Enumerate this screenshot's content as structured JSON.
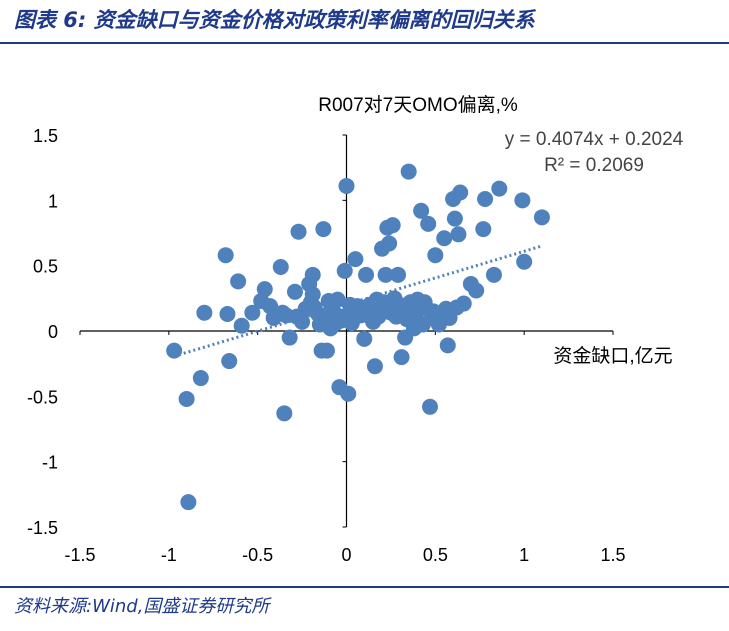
{
  "figure": {
    "title": "图表 6:  资金缺口与资金价格对政策利率偏离的回归关系",
    "source": "资料来源:Wind,国盛证券研究所"
  },
  "colors": {
    "marker": "#4f81bd",
    "trendline": "#4f81bd",
    "brand": "#1f3a8a"
  },
  "chart_data": {
    "type": "scatter",
    "title": "R007对7天OMO偏离,%",
    "xlabel": "资金缺口,亿元",
    "ylabel": "",
    "xlim": [
      -1.5,
      1.5
    ],
    "ylim": [
      -1.5,
      1.5
    ],
    "xticks": [
      "-1.5",
      "-1",
      "-0.5",
      "0",
      "0.5",
      "1",
      "1.5"
    ],
    "yticks": [
      "1.5",
      "1",
      "0.5",
      "0",
      "-0.5",
      "-1",
      "-1.5"
    ],
    "xtick_values": [
      -1.5,
      -1,
      -0.5,
      0,
      0.5,
      1,
      1.5
    ],
    "ytick_values": [
      1.5,
      1,
      0.5,
      0,
      -0.5,
      -1,
      -1.5
    ],
    "trendline": {
      "slope": 0.4074,
      "intercept": 0.2024,
      "x_range": [
        -0.97,
        1.1
      ]
    },
    "annotations": {
      "equation": "y = 0.4074x + 0.2024",
      "r2": "R² = 0.2069"
    },
    "grid": false,
    "points": [
      [
        -0.97,
        -0.15
      ],
      [
        -0.9,
        -0.52
      ],
      [
        -0.89,
        -1.31
      ],
      [
        -0.82,
        -0.36
      ],
      [
        -0.8,
        0.14
      ],
      [
        -0.68,
        0.58
      ],
      [
        -0.66,
        -0.23
      ],
      [
        -0.67,
        0.13
      ],
      [
        -0.61,
        0.38
      ],
      [
        -0.59,
        0.04
      ],
      [
        -0.53,
        0.14
      ],
      [
        -0.48,
        0.23
      ],
      [
        -0.46,
        0.32
      ],
      [
        -0.43,
        0.19
      ],
      [
        -0.41,
        0.1
      ],
      [
        -0.37,
        0.49
      ],
      [
        -0.36,
        0.14
      ],
      [
        -0.35,
        -0.63
      ],
      [
        -0.34,
        0.12
      ],
      [
        -0.32,
        -0.05
      ],
      [
        -0.29,
        0.3
      ],
      [
        -0.28,
        0.11
      ],
      [
        -0.27,
        0.76
      ],
      [
        -0.25,
        0.07
      ],
      [
        -0.23,
        0.17
      ],
      [
        -0.21,
        0.36
      ],
      [
        -0.2,
        0.22
      ],
      [
        -0.19,
        0.28
      ],
      [
        -0.19,
        0.43
      ],
      [
        -0.18,
        0.18
      ],
      [
        -0.16,
        0.13
      ],
      [
        -0.15,
        0.05
      ],
      [
        -0.14,
        -0.15
      ],
      [
        -0.13,
        0.78
      ],
      [
        -0.12,
        0.12
      ],
      [
        -0.11,
        -0.15
      ],
      [
        -0.1,
        0.23
      ],
      [
        -0.09,
        0.02
      ],
      [
        -0.08,
        0.04
      ],
      [
        -0.07,
        0.14
      ],
      [
        -0.06,
        0.06
      ],
      [
        -0.05,
        0.24
      ],
      [
        -0.04,
        -0.43
      ],
      [
        -0.03,
        0.08
      ],
      [
        -0.02,
        0.11
      ],
      [
        -0.01,
        0.46
      ],
      [
        0.0,
        1.11
      ],
      [
        0.01,
        -0.48
      ],
      [
        0.02,
        0.2
      ],
      [
        0.03,
        0.06
      ],
      [
        0.04,
        0.1
      ],
      [
        0.05,
        0.55
      ],
      [
        0.06,
        0.19
      ],
      [
        0.08,
        0.12
      ],
      [
        0.1,
        -0.06
      ],
      [
        0.11,
        0.43
      ],
      [
        0.12,
        0.12
      ],
      [
        0.13,
        0.2
      ],
      [
        0.15,
        0.07
      ],
      [
        0.16,
        -0.27
      ],
      [
        0.17,
        0.24
      ],
      [
        0.18,
        0.11
      ],
      [
        0.19,
        0.16
      ],
      [
        0.2,
        0.63
      ],
      [
        0.21,
        0.22
      ],
      [
        0.22,
        0.43
      ],
      [
        0.23,
        0.79
      ],
      [
        0.24,
        0.67
      ],
      [
        0.25,
        0.14
      ],
      [
        0.26,
        0.81
      ],
      [
        0.27,
        0.25
      ],
      [
        0.28,
        0.11
      ],
      [
        0.29,
        0.43
      ],
      [
        0.3,
        0.2
      ],
      [
        0.31,
        -0.2
      ],
      [
        0.32,
        0.17
      ],
      [
        0.33,
        -0.05
      ],
      [
        0.34,
        0.09
      ],
      [
        0.35,
        1.22
      ],
      [
        0.36,
        0.22
      ],
      [
        0.37,
        0.19
      ],
      [
        0.38,
        0.02
      ],
      [
        0.39,
        0.12
      ],
      [
        0.4,
        0.24
      ],
      [
        0.41,
        0.17
      ],
      [
        0.42,
        0.92
      ],
      [
        0.43,
        0.05
      ],
      [
        0.44,
        0.22
      ],
      [
        0.46,
        0.82
      ],
      [
        0.47,
        -0.58
      ],
      [
        0.48,
        0.1
      ],
      [
        0.49,
        0.15
      ],
      [
        0.5,
        0.58
      ],
      [
        0.51,
        0.12
      ],
      [
        0.52,
        0.05
      ],
      [
        0.53,
        0.08
      ],
      [
        0.55,
        0.71
      ],
      [
        0.56,
        0.17
      ],
      [
        0.57,
        -0.11
      ],
      [
        0.58,
        0.1
      ],
      [
        0.6,
        1.01
      ],
      [
        0.61,
        0.86
      ],
      [
        0.62,
        0.18
      ],
      [
        0.63,
        0.74
      ],
      [
        0.64,
        1.06
      ],
      [
        0.66,
        0.21
      ],
      [
        0.7,
        0.36
      ],
      [
        0.73,
        0.31
      ],
      [
        0.77,
        0.78
      ],
      [
        0.78,
        1.01
      ],
      [
        0.83,
        0.43
      ],
      [
        0.86,
        1.09
      ],
      [
        0.99,
        1.0
      ],
      [
        1.0,
        0.53
      ],
      [
        1.1,
        0.87
      ]
    ]
  }
}
